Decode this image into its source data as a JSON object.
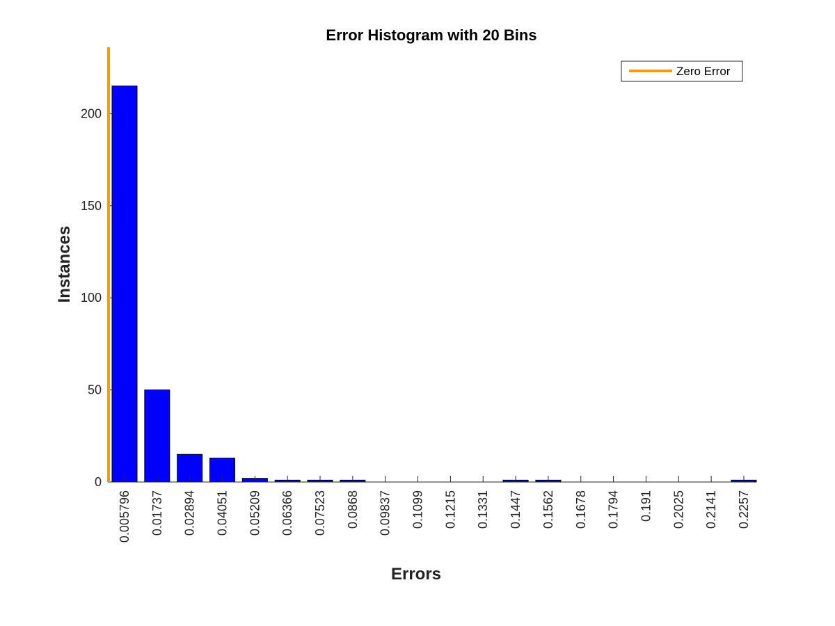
{
  "chart_data": {
    "type": "bar",
    "title": "Error Histogram with 20 Bins",
    "xlabel": "Errors",
    "ylabel": "Instances",
    "categories": [
      "0.005796",
      "0.01737",
      "0.02894",
      "0.04051",
      "0.05209",
      "0.06366",
      "0.07523",
      "0.0868",
      "0.09837",
      "0.1099",
      "0.1215",
      "0.1331",
      "0.1447",
      "0.1562",
      "0.1678",
      "0.1794",
      "0.191",
      "0.2025",
      "0.2141",
      "0.2257"
    ],
    "values": [
      215,
      50,
      15,
      13,
      2,
      1,
      1,
      1,
      0,
      0,
      0,
      0,
      1,
      1,
      0,
      0,
      0,
      0,
      0,
      1
    ],
    "ylim": [
      0,
      236
    ],
    "yticks": [
      0,
      50,
      100,
      150,
      200
    ],
    "bar_color": "#0000ff",
    "zero_error_line": {
      "label": "Zero Error",
      "color": "#ff9900",
      "x_position": "0"
    },
    "legend": {
      "placement": "top-right",
      "entries": [
        "Zero Error"
      ]
    },
    "grid": false
  }
}
